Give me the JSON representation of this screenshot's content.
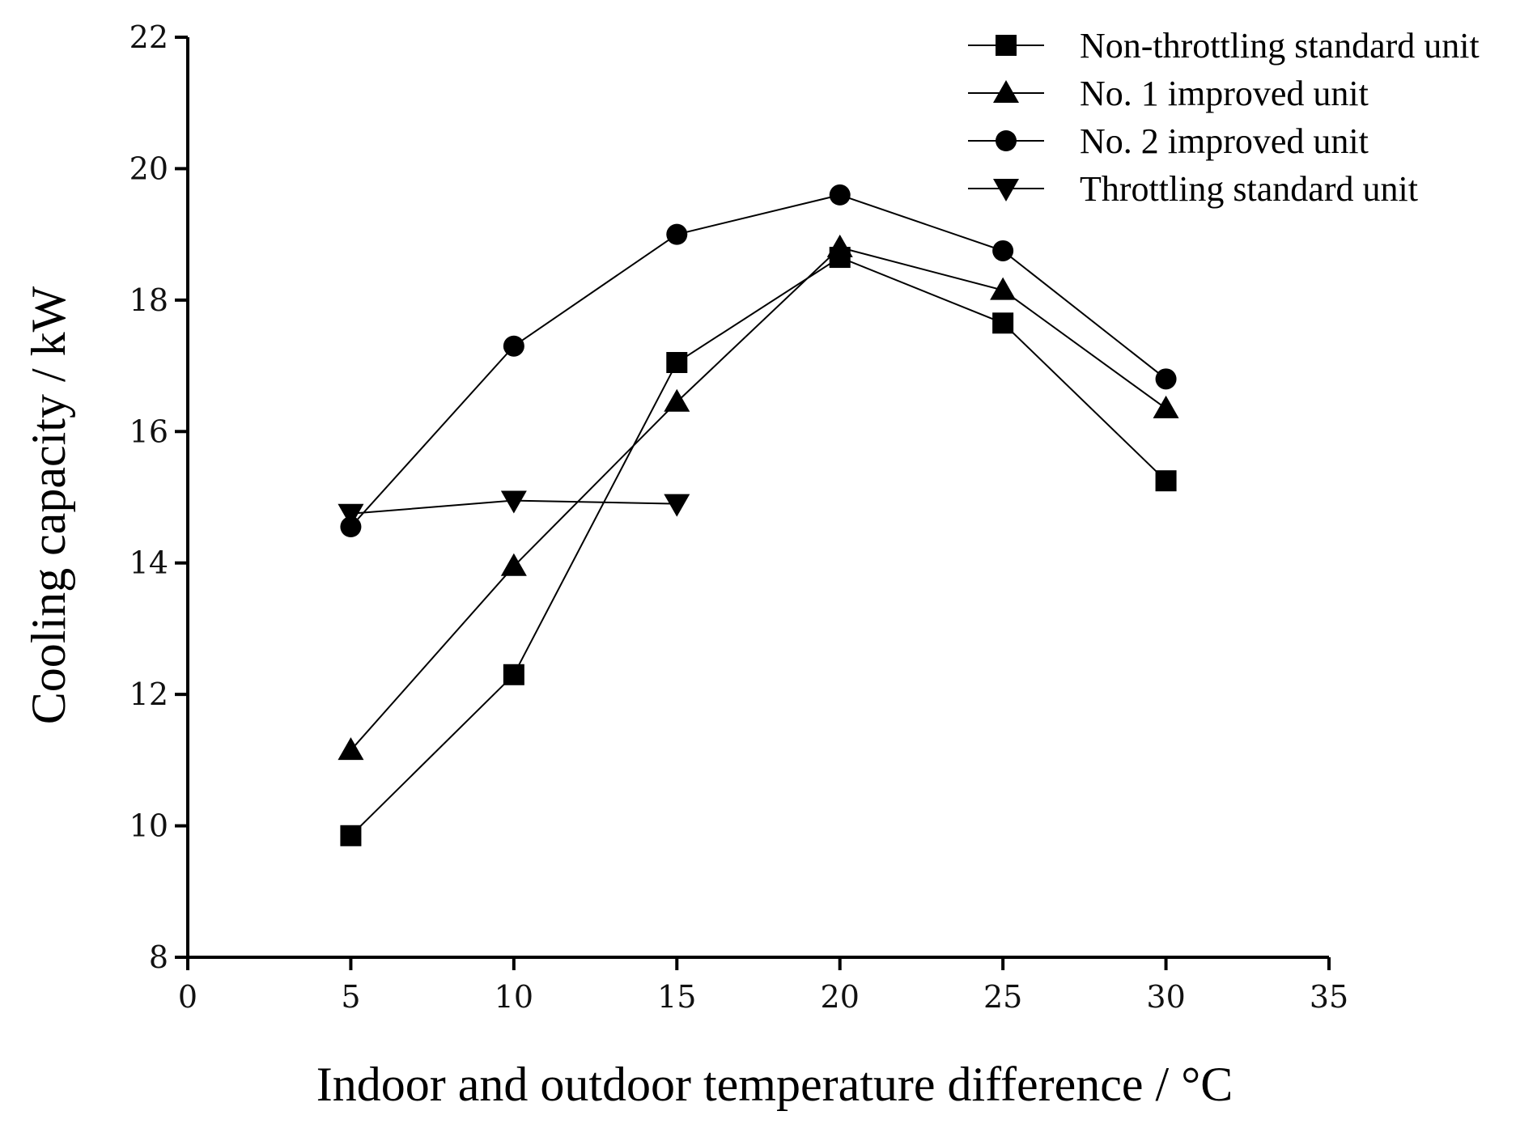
{
  "chart_data": {
    "type": "line",
    "title": "",
    "xlabel": "Indoor and outdoor temperature difference / °C",
    "ylabel": "Cooling capacity / kW",
    "xlim": [
      0,
      35
    ],
    "ylim": [
      8,
      22
    ],
    "xticks": [
      0,
      5,
      10,
      15,
      20,
      25,
      30,
      35
    ],
    "yticks": [
      8,
      10,
      12,
      14,
      16,
      18,
      20,
      22
    ],
    "grid": false,
    "legend_position": "top-right",
    "series": [
      {
        "name": "Non-throttling standard unit",
        "marker": "square",
        "x": [
          5,
          10,
          15,
          20,
          25,
          30
        ],
        "y": [
          9.85,
          12.3,
          17.05,
          18.65,
          17.65,
          15.25
        ]
      },
      {
        "name": "No. 1 improved unit",
        "marker": "triangle-up",
        "x": [
          5,
          10,
          15,
          20,
          25,
          30
        ],
        "y": [
          11.15,
          13.95,
          16.45,
          18.8,
          18.15,
          16.35
        ]
      },
      {
        "name": "No. 2 improved unit",
        "marker": "circle",
        "x": [
          5,
          10,
          15,
          20,
          25,
          30
        ],
        "y": [
          14.55,
          17.3,
          19.0,
          19.6,
          18.75,
          16.8
        ]
      },
      {
        "name": "Throttling standard unit",
        "marker": "triangle-down",
        "x": [
          5,
          10,
          15
        ],
        "y": [
          14.75,
          14.95,
          14.9
        ]
      }
    ]
  }
}
